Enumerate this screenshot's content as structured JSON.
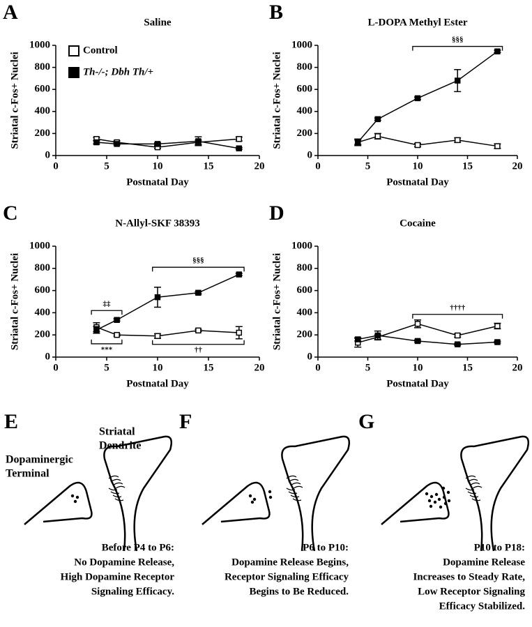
{
  "chart_data": [
    {
      "type": "line",
      "label": "A",
      "title": "Saline",
      "xlabel": "Postnatal Day",
      "ylabel": "Striatal c-Fos+ Nuclei",
      "x": [
        4,
        6,
        10,
        14,
        18
      ],
      "xlim": [
        0,
        20
      ],
      "ylim": [
        0,
        1000
      ],
      "xticks": [
        0,
        5,
        10,
        15,
        20
      ],
      "yticks": [
        0,
        200,
        400,
        600,
        800,
        1000
      ],
      "legend": "upper left",
      "series": [
        {
          "name": "Control",
          "color": "#000000",
          "fill": "#ffffff",
          "values": [
            150,
            120,
            75,
            120,
            150
          ],
          "errors": [
            15,
            12,
            10,
            20,
            18
          ]
        },
        {
          "name": "Th-/-; Dbh Th/+",
          "color": "#000000",
          "fill": "#000000",
          "values": [
            120,
            105,
            105,
            130,
            65
          ],
          "errors": [
            15,
            10,
            10,
            40,
            8
          ]
        }
      ]
    },
    {
      "type": "line",
      "label": "B",
      "title": "L-DOPA Methyl Ester",
      "xlabel": "Postnatal Day",
      "ylabel": "Striatal c-Fos+ Nuclei",
      "x": [
        4,
        6,
        10,
        14,
        18
      ],
      "xlim": [
        0,
        20
      ],
      "ylim": [
        0,
        1000
      ],
      "xticks": [
        0,
        5,
        10,
        15,
        20
      ],
      "yticks": [
        0,
        200,
        400,
        600,
        800,
        1000
      ],
      "series": [
        {
          "color": "#000000",
          "fill": "#ffffff",
          "values": [
            120,
            175,
            95,
            140,
            85
          ],
          "errors": [
            20,
            25,
            15,
            20,
            20
          ]
        },
        {
          "color": "#000000",
          "fill": "#000000",
          "values": [
            120,
            330,
            520,
            680,
            945
          ],
          "errors": [
            30,
            10,
            10,
            100,
            10
          ]
        }
      ],
      "annotations": [
        {
          "text": "§§§",
          "x": [
            9.5,
            18.5
          ],
          "y": 990,
          "side": "above"
        }
      ]
    },
    {
      "type": "line",
      "label": "C",
      "title": "N-Allyl-SKF 38393",
      "xlabel": "Postnatal Day",
      "ylabel": "Striatal c-Fos+ Nuclei",
      "x": [
        4,
        6,
        10,
        14,
        18
      ],
      "xlim": [
        0,
        20
      ],
      "ylim": [
        0,
        1000
      ],
      "xticks": [
        0,
        5,
        10,
        15,
        20
      ],
      "yticks": [
        0,
        200,
        400,
        600,
        800,
        1000
      ],
      "series": [
        {
          "color": "#000000",
          "fill": "#ffffff",
          "values": [
            270,
            200,
            190,
            240,
            220
          ],
          "errors": [
            40,
            10,
            20,
            10,
            55
          ]
        },
        {
          "color": "#000000",
          "fill": "#000000",
          "values": [
            245,
            335,
            540,
            580,
            745
          ],
          "errors": [
            30,
            10,
            90,
            10,
            10
          ]
        }
      ],
      "annotations": [
        {
          "text": "‡‡",
          "x": [
            3.5,
            6.5
          ],
          "y": 420,
          "side": "above"
        },
        {
          "text": "***",
          "x": [
            3.5,
            6.5
          ],
          "y": 120,
          "side": "below"
        },
        {
          "text": "§§§",
          "x": [
            9.5,
            18.5
          ],
          "y": 810,
          "side": "above"
        },
        {
          "text": "††",
          "x": [
            9.5,
            18.5
          ],
          "y": 115,
          "side": "below"
        }
      ]
    },
    {
      "type": "line",
      "label": "D",
      "title": "Cocaine",
      "xlabel": "Postnatal Day",
      "ylabel": "Striatal c-Fos+ Nuclei",
      "x": [
        4,
        6,
        10,
        14,
        18
      ],
      "xlim": [
        0,
        20
      ],
      "ylim": [
        0,
        1000
      ],
      "xticks": [
        0,
        5,
        10,
        15,
        20
      ],
      "yticks": [
        0,
        200,
        400,
        600,
        800,
        1000
      ],
      "series": [
        {
          "color": "#000000",
          "fill": "#ffffff",
          "values": [
            130,
            180,
            300,
            195,
            280
          ],
          "errors": [
            40,
            20,
            35,
            15,
            25
          ]
        },
        {
          "color": "#000000",
          "fill": "#000000",
          "values": [
            160,
            195,
            145,
            115,
            135
          ],
          "errors": [
            15,
            40,
            10,
            8,
            8
          ]
        }
      ],
      "annotations": [
        {
          "text": "††††",
          "x": [
            9.5,
            18.5
          ],
          "y": 385,
          "side": "above"
        }
      ]
    }
  ],
  "diagrams": [
    {
      "label": "E",
      "dendrite": [
        "Striatal",
        "Dendrite"
      ],
      "terminal": [
        "Dopaminergic",
        "Terminal"
      ],
      "caption": [
        "Before P4 to P6:",
        "No Dopamine Release,",
        "High Dopamine Receptor",
        "Signaling Efficacy."
      ]
    },
    {
      "label": "F",
      "caption": [
        "P6 to P10:",
        "Dopamine Release Begins,",
        "Receptor Signaling Efficacy",
        "Begins to Be Reduced."
      ]
    },
    {
      "label": "G",
      "caption": [
        "P10 to P18:",
        "Dopamine Release",
        "Increases to Steady Rate,",
        "Low Receptor Signaling",
        "Efficacy Stabilized."
      ]
    }
  ]
}
